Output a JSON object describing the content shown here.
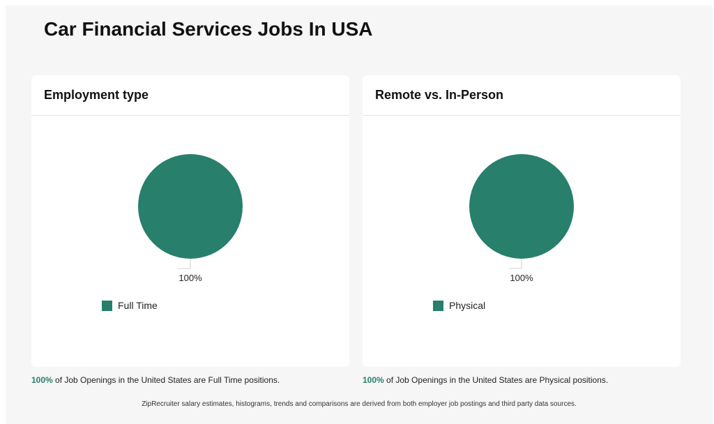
{
  "page": {
    "title": "Car Financial Services Jobs In USA",
    "footnote": "ZipRecruiter salary estimates, histograms, trends and comparisons are derived from both employer job postings and third party data sources."
  },
  "chart_data": [
    {
      "type": "pie",
      "title": "Employment type",
      "categories": [
        "Full Time"
      ],
      "values": [
        100
      ],
      "value_labels": [
        "100%"
      ],
      "colors": [
        "#277f6c"
      ],
      "legend": "bottom-left",
      "caption": {
        "percent": "100%",
        "text": " of Job Openings in the United States are Full Time positions."
      }
    },
    {
      "type": "pie",
      "title": "Remote vs. In-Person",
      "categories": [
        "Physical"
      ],
      "values": [
        100
      ],
      "value_labels": [
        "100%"
      ],
      "colors": [
        "#277f6c"
      ],
      "legend": "bottom-left",
      "caption": {
        "percent": "100%",
        "text": " of Job Openings in the United States are Physical positions."
      }
    }
  ],
  "theme": {
    "accent": "#277f6c",
    "leader_line": "#d0d0d0"
  }
}
